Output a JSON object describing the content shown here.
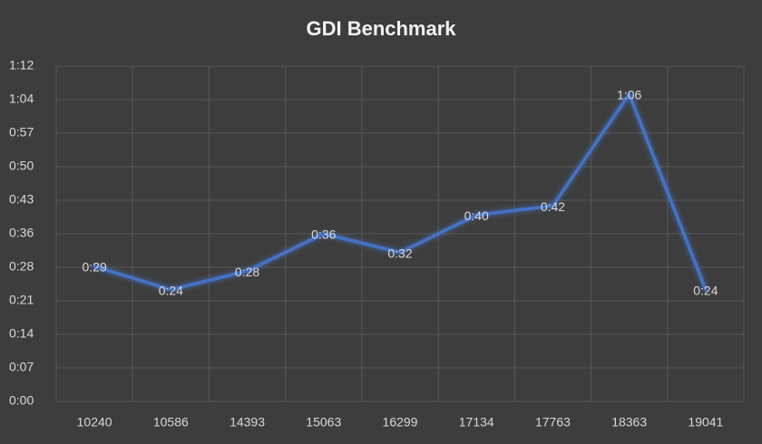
{
  "chart_data": {
    "type": "line",
    "title": "GDI Benchmark",
    "categories": [
      "10240",
      "10586",
      "14393",
      "15063",
      "16299",
      "17134",
      "17763",
      "18363",
      "19041"
    ],
    "values": [
      29,
      24,
      28,
      36,
      32,
      40,
      42,
      66,
      24
    ],
    "value_labels": [
      "0:29",
      "0:24",
      "0:28",
      "0:36",
      "0:32",
      "0:40",
      "0:42",
      "1:06",
      "0:24"
    ],
    "color": "#4472c4",
    "ylim": [
      0,
      72
    ],
    "yticks": [
      {
        "value": 0,
        "label": "0:00"
      },
      {
        "value": 7.2,
        "label": "0:07"
      },
      {
        "value": 14.4,
        "label": "0:14"
      },
      {
        "value": 21.6,
        "label": "0:21"
      },
      {
        "value": 28.8,
        "label": "0:28"
      },
      {
        "value": 36,
        "label": "0:36"
      },
      {
        "value": 43.2,
        "label": "0:43"
      },
      {
        "value": 50.4,
        "label": "0:50"
      },
      {
        "value": 57.6,
        "label": "0:57"
      },
      {
        "value": 64.8,
        "label": "1:04"
      },
      {
        "value": 72,
        "label": "1:12"
      }
    ],
    "grid": true
  }
}
